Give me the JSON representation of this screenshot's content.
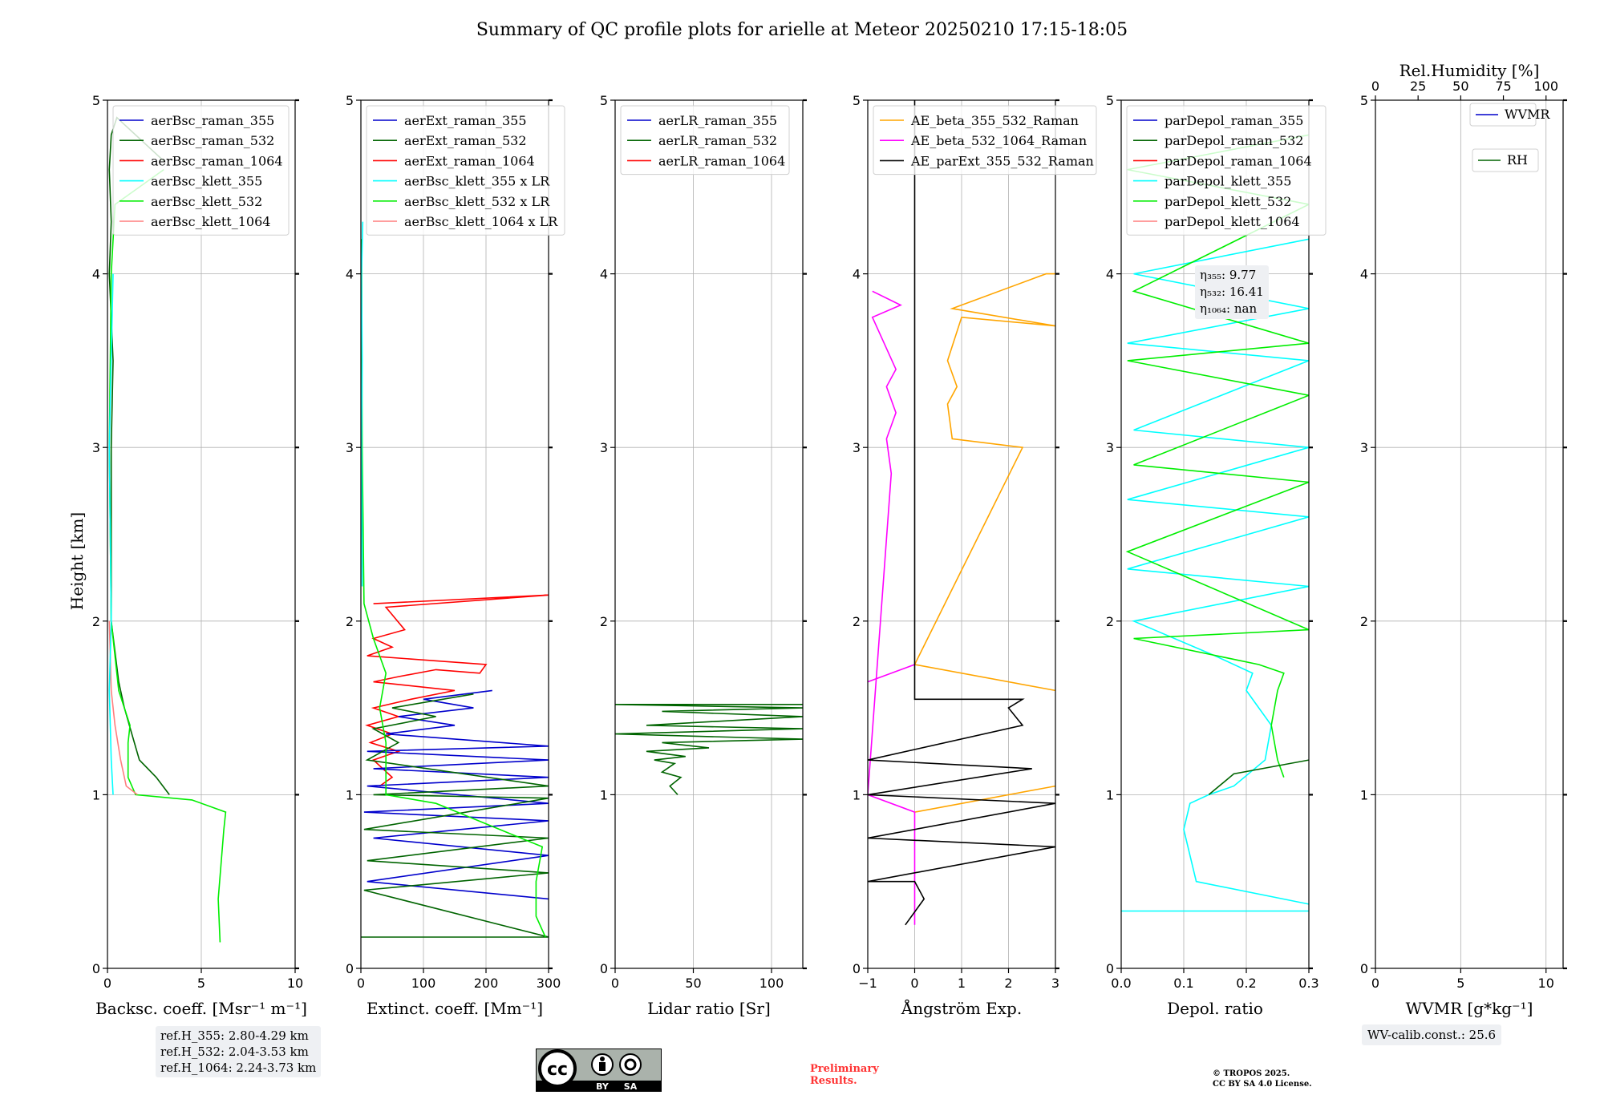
{
  "title": "Summary of QC profile plots for arielle at Meteor 20250210 17:15-18:05",
  "y_label": "Height [km]",
  "chart_data": [
    {
      "type": "line",
      "name": "backscatter",
      "xlabel": "Backsc. coeff. [Msr⁻¹ m⁻¹]",
      "ylabel": "Height [km]",
      "xlim": [
        0,
        10
      ],
      "ylim": [
        0,
        5
      ],
      "xticks": [
        0,
        5,
        10
      ],
      "yticks": [
        0,
        1,
        2,
        3,
        4,
        5
      ],
      "legend": [
        "aerBsc_raman_355",
        "aerBsc_raman_532",
        "aerBsc_raman_1064",
        "aerBsc_klett_355",
        "aerBsc_klett_532",
        "aerBsc_klett_1064"
      ],
      "legend_colors": [
        "#0000cc",
        "#006400",
        "#ff0000",
        "#00ffff",
        "#00ee00",
        "#ff7f7f"
      ],
      "series": [
        {
          "name": "aerBsc_raman_532",
          "color": "#006400",
          "x": [
            3.3,
            2.6,
            1.7,
            1.3,
            0.9,
            0.6,
            0.2,
            0.2,
            0.3,
            0.1,
            0.2,
            0.1,
            0.2,
            0.5,
            3.0
          ],
          "y": [
            1.0,
            1.1,
            1.2,
            1.35,
            1.5,
            1.65,
            2.0,
            3.0,
            3.5,
            4.0,
            4.3,
            4.6,
            4.8,
            4.9,
            4.65
          ]
        },
        {
          "name": "aerBsc_klett_532",
          "color": "#00ee00",
          "x": [
            6.0,
            5.9,
            6.2,
            6.3,
            4.5,
            1.5,
            1.1,
            1.1,
            1.2,
            0.6,
            0.2,
            0.1,
            0.2,
            0.4,
            3.0
          ],
          "y": [
            0.15,
            0.4,
            0.8,
            0.9,
            0.97,
            1.0,
            1.1,
            1.3,
            1.4,
            1.6,
            2.0,
            3.0,
            4.0,
            4.4,
            4.6
          ]
        },
        {
          "name": "aerBsc_klett_1064",
          "color": "#ff7f7f",
          "x": [
            1.6,
            1.0,
            0.7,
            0.4,
            0.2,
            0.1
          ],
          "y": [
            1.0,
            1.05,
            1.2,
            1.4,
            1.6,
            2.0
          ]
        },
        {
          "name": "aerBsc_klett_355",
          "color": "#00ffff",
          "x": [
            0.3,
            0.2,
            0.1,
            0.2,
            0.1,
            0.3
          ],
          "y": [
            1.0,
            1.2,
            1.6,
            2.0,
            3.0,
            4.0
          ]
        }
      ],
      "info": [
        "ref.H_355: 2.80-4.29 km",
        "ref.H_532: 2.04-3.53 km",
        "ref.H_1064: 2.24-3.73 km"
      ]
    },
    {
      "type": "line",
      "name": "extinction",
      "xlabel": "Extinct. coeff. [Mm⁻¹]",
      "xlim": [
        0,
        300
      ],
      "ylim": [
        0,
        5
      ],
      "xticks": [
        0,
        100,
        200,
        300
      ],
      "yticks": [
        0,
        1,
        2,
        3,
        4,
        5
      ],
      "legend": [
        "aerExt_raman_355",
        "aerExt_raman_532",
        "aerExt_raman_1064",
        "aerBsc_klett_355 x LR",
        "aerBsc_klett_532 x LR",
        "aerBsc_klett_1064 x LR"
      ],
      "legend_colors": [
        "#0000cc",
        "#006400",
        "#ff0000",
        "#00ffff",
        "#00ee00",
        "#ff7f7f"
      ],
      "series": [
        {
          "name": "aerExt_raman_1064",
          "color": "#ff0000",
          "x": [
            20,
            300,
            40,
            70,
            20,
            50,
            10,
            200,
            190,
            120,
            60,
            20,
            150,
            80,
            20,
            60,
            10,
            50,
            15,
            60,
            20,
            50,
            30
          ],
          "y": [
            2.1,
            2.15,
            2.08,
            1.95,
            1.9,
            1.85,
            1.8,
            1.75,
            1.7,
            1.72,
            1.68,
            1.65,
            1.6,
            1.55,
            1.5,
            1.45,
            1.4,
            1.35,
            1.3,
            1.25,
            1.2,
            1.1,
            1.05
          ]
        },
        {
          "name": "aerExt_raman_355",
          "color": "#0000cc",
          "x": [
            210,
            100,
            180,
            60,
            150,
            40,
            300,
            10,
            300,
            20,
            300,
            10,
            300,
            5,
            300,
            20,
            300,
            10,
            300
          ],
          "y": [
            1.6,
            1.55,
            1.5,
            1.45,
            1.4,
            1.35,
            1.28,
            1.25,
            1.2,
            1.15,
            1.1,
            1.05,
            0.95,
            0.9,
            0.85,
            0.75,
            0.65,
            0.5,
            0.4
          ]
        },
        {
          "name": "aerExt_raman_532",
          "color": "#006400",
          "x": [
            180,
            50,
            120,
            20,
            60,
            10,
            300,
            20,
            300,
            5,
            300,
            10,
            300,
            5,
            300,
            0
          ],
          "y": [
            1.58,
            1.5,
            1.45,
            1.38,
            1.3,
            1.2,
            1.05,
            1.0,
            0.98,
            0.8,
            0.75,
            0.62,
            0.55,
            0.45,
            0.18,
            0.18
          ]
        },
        {
          "name": "aerBsc_klett_532 x LR",
          "color": "#00ee00",
          "x": [
            295,
            280,
            280,
            290,
            120,
            40,
            40,
            30,
            40,
            20,
            5,
            2,
            1
          ],
          "y": [
            0.18,
            0.3,
            0.5,
            0.7,
            0.95,
            1.0,
            1.3,
            1.5,
            1.7,
            1.9,
            2.1,
            3.0,
            4.2
          ]
        },
        {
          "name": "aerBsc_klett_355 x LR",
          "color": "#00ffff",
          "x": [
            2,
            1,
            2,
            1,
            3
          ],
          "y": [
            2.2,
            3.0,
            3.5,
            4.0,
            4.3
          ]
        }
      ]
    },
    {
      "type": "line",
      "name": "lidar_ratio",
      "xlabel": "Lidar ratio [Sr]",
      "xlim": [
        0,
        120
      ],
      "ylim": [
        0,
        5
      ],
      "xticks": [
        0,
        50,
        100
      ],
      "yticks": [
        0,
        1,
        2,
        3,
        4,
        5
      ],
      "legend": [
        "aerLR_raman_355",
        "aerLR_raman_532",
        "aerLR_raman_1064"
      ],
      "legend_colors": [
        "#0000cc",
        "#006400",
        "#ff0000"
      ],
      "series": [
        {
          "name": "aerLR_raman_532",
          "color": "#006400",
          "x": [
            40,
            35,
            42,
            30,
            38,
            25,
            45,
            20,
            60,
            30,
            120,
            0,
            120,
            20,
            120,
            30,
            120,
            0,
            120
          ],
          "y": [
            1.0,
            1.05,
            1.1,
            1.13,
            1.18,
            1.2,
            1.22,
            1.25,
            1.27,
            1.3,
            1.32,
            1.35,
            1.38,
            1.4,
            1.45,
            1.48,
            1.5,
            1.52,
            1.52
          ]
        }
      ]
    },
    {
      "type": "line",
      "name": "angstrom",
      "xlabel": "Ångström Exp.",
      "xlim": [
        -1,
        3
      ],
      "ylim": [
        0,
        5
      ],
      "xticks": [
        -1,
        0,
        1,
        2,
        3
      ],
      "yticks": [
        0,
        1,
        2,
        3,
        4,
        5
      ],
      "legend": [
        "AE_beta_355_532_Raman",
        "AE_beta_532_1064_Raman",
        "AE_parExt_355_532_Raman"
      ],
      "legend_colors": [
        "#ffa500",
        "#ff00ff",
        "#000000"
      ],
      "series": [
        {
          "name": "AE_beta_355_532_Raman",
          "color": "#ffa500",
          "x": [
            3,
            0,
            2.3,
            0.8,
            0.7,
            0.9,
            0.7,
            1.0,
            3,
            0.8,
            2.8,
            3
          ],
          "y": [
            1.6,
            1.75,
            3.0,
            3.05,
            3.25,
            3.35,
            3.5,
            3.75,
            3.7,
            3.8,
            4.0,
            4.0
          ]
        },
        {
          "name": "AE_beta_355_532_Raman_low",
          "color": "#ffa500",
          "x": [
            0,
            3
          ],
          "y": [
            0.9,
            1.05
          ]
        },
        {
          "name": "AE_beta_532_1064_Raman",
          "color": "#ff00ff",
          "x": [
            0,
            0,
            -1,
            -0.5,
            -0.6,
            -0.4,
            -0.6,
            -0.4,
            -0.9,
            -0.3,
            -0.9
          ],
          "y": [
            0.25,
            0.9,
            1.0,
            2.85,
            3.05,
            3.2,
            3.35,
            3.45,
            3.75,
            3.82,
            3.9
          ]
        },
        {
          "name": "AE_beta_532_1064_Raman_top",
          "color": "#ff00ff",
          "x": [
            -1,
            0
          ],
          "y": [
            1.65,
            1.75
          ]
        },
        {
          "name": "AE_parExt_355_532_Raman",
          "color": "#000000",
          "x": [
            -0.2,
            0.2,
            0.0,
            -1,
            3,
            -1,
            3,
            -1,
            2.5,
            -1,
            2.3,
            2.0,
            2.3,
            0,
            0,
            0
          ],
          "y": [
            0.25,
            0.4,
            0.5,
            0.5,
            0.7,
            0.75,
            0.95,
            1.0,
            1.15,
            1.2,
            1.4,
            1.5,
            1.55,
            1.55,
            2.85,
            5.0
          ]
        }
      ]
    },
    {
      "type": "line",
      "name": "depolarization",
      "xlabel": "Depol. ratio",
      "xlim": [
        0.0,
        0.3
      ],
      "ylim": [
        0,
        5
      ],
      "xticks": [
        0.0,
        0.1,
        0.2,
        0.3
      ],
      "yticks": [
        0,
        1,
        2,
        3,
        4,
        5
      ],
      "legend": [
        "parDepol_raman_355",
        "parDepol_raman_532",
        "parDepol_raman_1064",
        "parDepol_klett_355",
        "parDepol_klett_532",
        "parDepol_klett_1064"
      ],
      "legend_colors": [
        "#0000cc",
        "#006400",
        "#ff0000",
        "#00ffff",
        "#00ee00",
        "#ff7f7f"
      ],
      "series": [
        {
          "name": "parDepol_klett_355",
          "color": "#00ffff",
          "x": [
            0.3,
            0.12,
            0.1,
            0.11,
            0.14,
            0.18,
            0.23,
            0.24,
            0.22,
            0.2,
            0.21,
            0.15,
            0.02,
            0.3,
            0.01,
            0.3,
            0.01,
            0.3,
            0.02,
            0.3,
            0.01,
            0.3,
            0.02,
            0.3
          ],
          "y": [
            0.37,
            0.5,
            0.8,
            0.95,
            1.0,
            1.05,
            1.2,
            1.4,
            1.5,
            1.6,
            1.7,
            1.8,
            2.0,
            2.2,
            2.3,
            2.6,
            2.7,
            3.0,
            3.1,
            3.5,
            3.6,
            3.8,
            4.0,
            4.2
          ]
        },
        {
          "name": "parDepol_klett_532",
          "color": "#00ee00",
          "x": [
            0.26,
            0.25,
            0.24,
            0.25,
            0.26,
            0.22,
            0.02,
            0.3,
            0.01,
            0.3,
            0.02,
            0.3,
            0.01,
            0.3,
            0.02,
            0.3,
            0.01,
            0.3
          ],
          "y": [
            1.1,
            1.2,
            1.4,
            1.6,
            1.7,
            1.75,
            1.9,
            1.95,
            2.4,
            2.8,
            2.9,
            3.3,
            3.5,
            3.6,
            3.9,
            4.4,
            4.6,
            4.8
          ]
        },
        {
          "name": "parDepol_raman_532",
          "color": "#006400",
          "x": [
            0.14,
            0.18,
            0.3
          ],
          "y": [
            1.0,
            1.12,
            1.2
          ]
        },
        {
          "name": "parDepol_klett_355_surface",
          "color": "#00ffff",
          "x": [
            0.3,
            0.0
          ],
          "y": [
            0.33,
            0.33
          ]
        }
      ],
      "info": [
        "η₃₅₅: 9.77",
        "η₅₃₂: 16.41",
        "η₁₀₆₄: nan"
      ]
    },
    {
      "type": "line",
      "name": "wvmr",
      "xlabel": "WVMR [g*kg⁻¹]",
      "x2label": "Rel.Humidity [%]",
      "xlim": [
        0,
        11
      ],
      "x2lim": [
        0,
        110
      ],
      "ylim": [
        0,
        5
      ],
      "xticks": [
        0,
        5,
        10
      ],
      "x2ticks": [
        0,
        25,
        50,
        75,
        100
      ],
      "yticks": [
        0,
        1,
        2,
        3,
        4,
        5
      ],
      "legend": [
        "WVMR",
        "RH"
      ],
      "legend_colors": [
        "#0000cc",
        "#006400"
      ],
      "series": [],
      "info": [
        "WV-calib.const.: 25.6"
      ]
    }
  ],
  "license": {
    "cc": "cc",
    "by": "BY",
    "sa": "SA"
  },
  "preliminary": [
    "Preliminary",
    "Results."
  ],
  "copyright": [
    "© TROPOS 2025.",
    "CC BY SA 4.0 License."
  ]
}
